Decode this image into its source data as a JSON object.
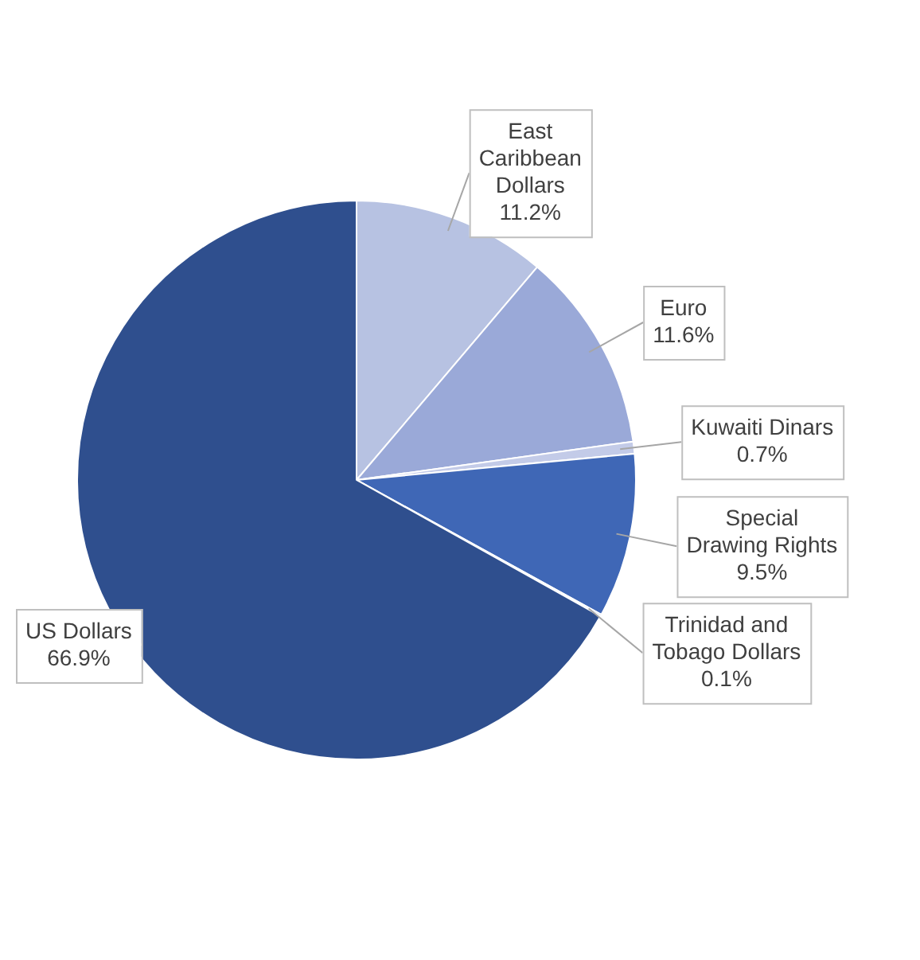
{
  "chart_data": {
    "type": "pie",
    "categories": [
      "East Caribbean Dollars",
      "Euro",
      "Kuwaiti Dinars",
      "Special Drawing Rights",
      "Trinidad and Tobago Dollars",
      "US Dollars"
    ],
    "values": [
      11.2,
      11.6,
      0.7,
      9.5,
      0.1,
      66.9
    ],
    "value_labels": [
      "11.2%",
      "11.6%",
      "0.7%",
      "9.5%",
      "0.1%",
      "66.9%"
    ],
    "colors": [
      "#b7c2e2",
      "#9aa9d8",
      "#c3cbe8",
      "#3f67b6",
      "#2c4f9a",
      "#2f4f8e"
    ],
    "legend": false
  }
}
